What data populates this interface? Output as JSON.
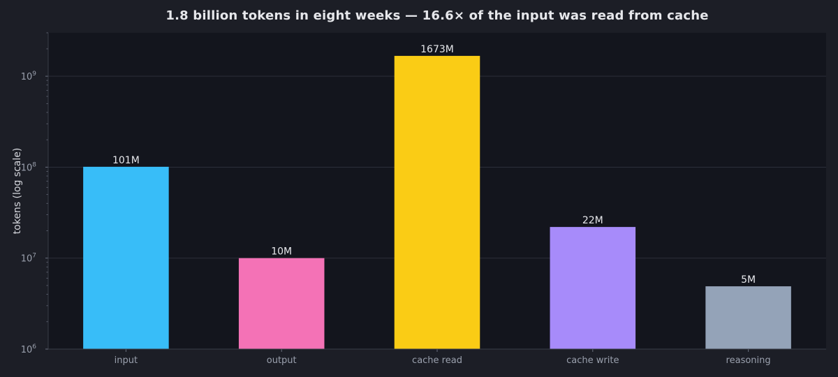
{
  "chart_data": {
    "type": "bar",
    "title": "1.8 billion tokens in eight weeks — 16.6× of the input was read from cache",
    "ylabel": "tokens (log scale)",
    "xlabel": "",
    "yscale": "log",
    "ylim": [
      1000000,
      3000000000
    ],
    "grid": true,
    "yticks": [
      {
        "value": 1000000,
        "base": "10",
        "exp": "6"
      },
      {
        "value": 10000000,
        "base": "10",
        "exp": "7"
      },
      {
        "value": 100000000,
        "base": "10",
        "exp": "8"
      },
      {
        "value": 1000000000,
        "base": "10",
        "exp": "9"
      }
    ],
    "categories": [
      "input",
      "output",
      "cache read",
      "cache write",
      "reasoning"
    ],
    "values": [
      101000000,
      10000000,
      1673000000,
      22000000,
      4900000
    ],
    "data_labels": [
      "101M",
      "10M",
      "1673M",
      "22M",
      "5M"
    ],
    "colors": [
      "#38bdf8",
      "#f472b6",
      "#facc15",
      "#a78bfa",
      "#94a3b8"
    ],
    "background": "#1c1e26",
    "plot_background": "#13151d",
    "gridline_color": "#2c2f3a"
  }
}
